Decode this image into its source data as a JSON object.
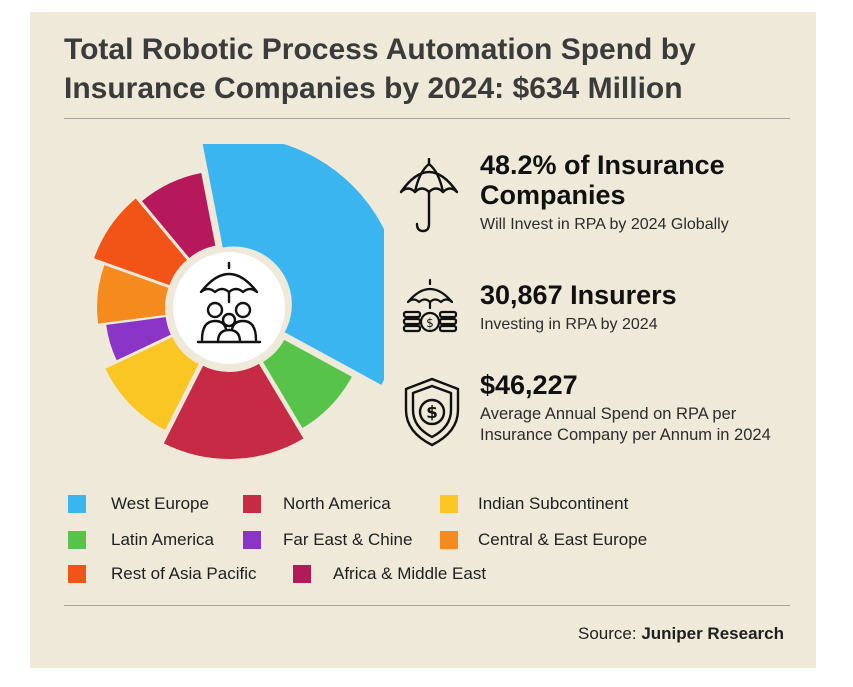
{
  "header": {
    "title": "Total Robotic Process Automation Spend by Insurance Companies by 2024: $634 Million"
  },
  "stats": [
    {
      "headline": "48.2% of Insurance Companies",
      "caption": "Will Invest in RPA by 2024 Globally",
      "icon": "umbrella-icon"
    },
    {
      "headline": "30,867 Insurers",
      "caption": "Investing in RPA by 2024",
      "icon": "umbrella-coins-icon"
    },
    {
      "headline": "$46,227",
      "caption": "Average Annual Spend on RPA per Insurance Company per Annum in 2024",
      "icon": "dollar-shield-icon"
    }
  ],
  "source": {
    "label": "Source:",
    "name": "Juniper Research"
  },
  "chart_data": {
    "type": "pie",
    "subtype": "donut",
    "title": "",
    "center_icon": "family-umbrella-icon",
    "note": "Slice values estimated from visual proportions; no data labels shown",
    "slices": [
      {
        "name": "West Europe",
        "value": 36,
        "color": "#3bb5f0"
      },
      {
        "name": "Latin America",
        "value": 8.5,
        "color": "#58c34a"
      },
      {
        "name": "North America",
        "value": 16,
        "color": "#c72a45"
      },
      {
        "name": "Indian Subcontinent",
        "value": 10.5,
        "color": "#f9c623"
      },
      {
        "name": "Far East & Chine",
        "value": 5,
        "color": "#8b34c8"
      },
      {
        "name": "Central & East Europe",
        "value": 7.5,
        "color": "#f58a1f"
      },
      {
        "name": "Rest of Asia Pacific",
        "value": 8.5,
        "color": "#f25316"
      },
      {
        "name": "Africa & Middle East",
        "value": 8,
        "color": "#b5195c"
      }
    ],
    "legend": [
      "West Europe",
      "North America",
      "Indian Subcontinent",
      "Latin America",
      "Far East & Chine",
      "Central & East Europe",
      "Rest of Asia Pacific",
      "Africa & Middle East"
    ],
    "legend_placement": "bottom"
  }
}
